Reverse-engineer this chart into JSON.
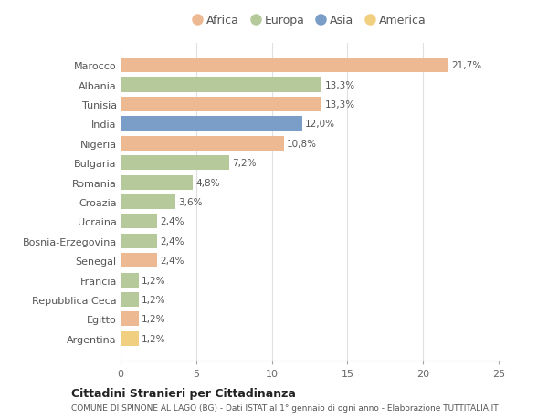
{
  "countries": [
    "Marocco",
    "Albania",
    "Tunisia",
    "India",
    "Nigeria",
    "Bulgaria",
    "Romania",
    "Croazia",
    "Ucraina",
    "Bosnia-Erzegovina",
    "Senegal",
    "Francia",
    "Repubblica Ceca",
    "Egitto",
    "Argentina"
  ],
  "values": [
    21.7,
    13.3,
    13.3,
    12.0,
    10.8,
    7.2,
    4.8,
    3.6,
    2.4,
    2.4,
    2.4,
    1.2,
    1.2,
    1.2,
    1.2
  ],
  "labels": [
    "21,7%",
    "13,3%",
    "13,3%",
    "12,0%",
    "10,8%",
    "7,2%",
    "4,8%",
    "3,6%",
    "2,4%",
    "2,4%",
    "2,4%",
    "1,2%",
    "1,2%",
    "1,2%",
    "1,2%"
  ],
  "continents": [
    "Africa",
    "Europa",
    "Africa",
    "Asia",
    "Africa",
    "Europa",
    "Europa",
    "Europa",
    "Europa",
    "Europa",
    "Africa",
    "Europa",
    "Europa",
    "Africa",
    "America"
  ],
  "colors": {
    "Africa": "#EDB993",
    "Europa": "#B5C99A",
    "Asia": "#7B9EC9",
    "America": "#F0D080"
  },
  "legend_order": [
    "Africa",
    "Europa",
    "Asia",
    "America"
  ],
  "title": "Cittadini Stranieri per Cittadinanza",
  "subtitle": "COMUNE DI SPINONE AL LAGO (BG) - Dati ISTAT al 1° gennaio di ogni anno - Elaborazione TUTTITALIA.IT",
  "xlim": [
    0,
    25
  ],
  "xticks": [
    0,
    5,
    10,
    15,
    20,
    25
  ],
  "background_color": "#ffffff",
  "grid_color": "#e0e0e0"
}
